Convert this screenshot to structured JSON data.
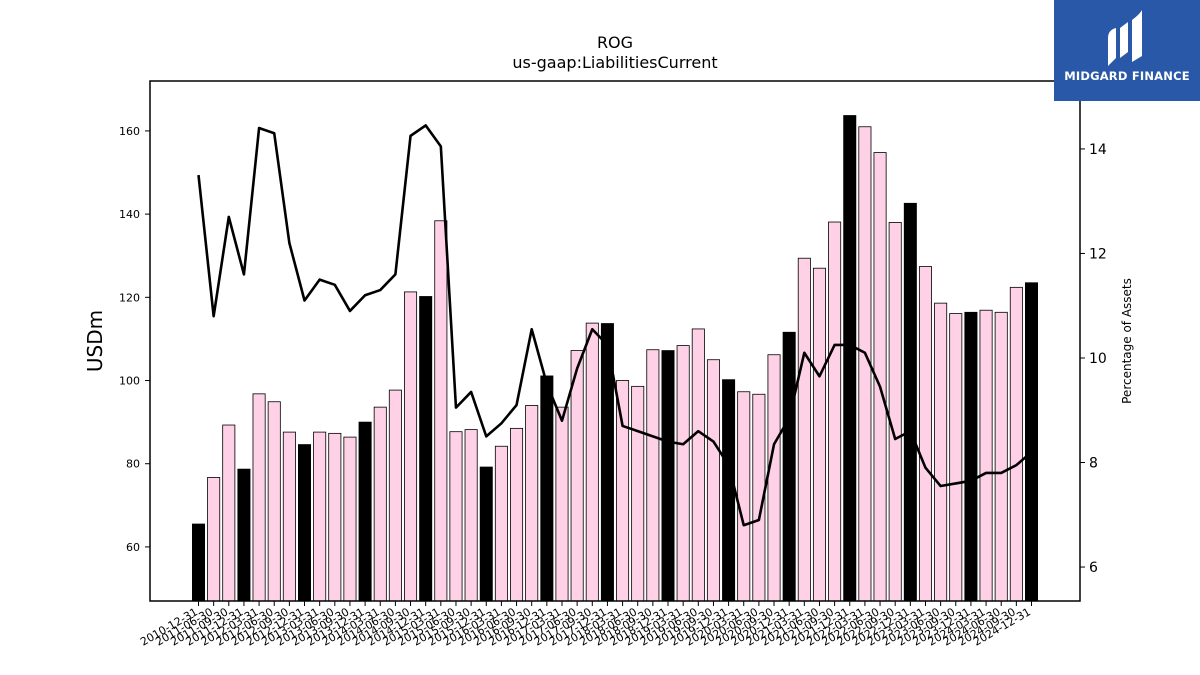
{
  "brand": {
    "name": "MIDGARD FINANCE",
    "logo_icon": "midgard-logo-icon",
    "background": "#2a58a8"
  },
  "chart_data": {
    "type": "bar",
    "title": "ROG",
    "subtitle": "us-gaap:LiabilitiesCurrent",
    "ylabel": "USDm",
    "ylabel_right": "Percentage of Assets",
    "ylim": [
      47,
      172
    ],
    "ylim_right": [
      5.35,
      15.3
    ],
    "yticks": [
      60,
      80,
      100,
      120,
      140,
      160
    ],
    "yticks_right": [
      6,
      8,
      10,
      12,
      14
    ],
    "grid": false,
    "colors": {
      "annual_bar": "#000000",
      "quarter_bar": "#ffd1e6",
      "bar_edge": "#000000",
      "line": "#000000"
    },
    "categories": [
      "2010-12-31",
      "2011-06-30",
      "2011-09-30",
      "2011-12-31",
      "2012-03-31",
      "2012-06-30",
      "2012-09-30",
      "2012-12-31",
      "2013-03-31",
      "2013-06-30",
      "2013-09-30",
      "2013-12-31",
      "2014-03-31",
      "2014-06-30",
      "2014-09-30",
      "2014-12-31",
      "2015-03-31",
      "2015-06-30",
      "2015-09-30",
      "2015-12-31",
      "2016-03-31",
      "2016-06-30",
      "2016-09-30",
      "2016-12-31",
      "2017-03-31",
      "2017-06-30",
      "2017-09-30",
      "2017-12-31",
      "2018-03-31",
      "2018-06-30",
      "2018-09-30",
      "2018-12-31",
      "2019-03-31",
      "2019-06-30",
      "2019-09-30",
      "2019-12-31",
      "2020-03-31",
      "2020-06-30",
      "2020-09-30",
      "2020-12-31",
      "2021-03-31",
      "2021-06-30",
      "2021-09-30",
      "2021-12-31",
      "2022-03-31",
      "2022-06-30",
      "2022-09-30",
      "2022-12-31",
      "2023-03-31",
      "2023-06-30",
      "2023-09-30",
      "2023-12-31",
      "2024-03-31",
      "2024-06-30",
      "2024-09-30",
      "2024-12-31"
    ],
    "series": [
      {
        "type": "bar",
        "values": [
          65.5,
          76.7,
          89.3,
          78.7,
          96.8,
          94.9,
          87.6,
          84.6,
          87.6,
          87.3,
          86.4,
          90.0,
          93.6,
          97.7,
          121.3,
          120.2,
          138.4,
          87.7,
          88.2,
          79.2,
          84.2,
          88.5,
          94.0,
          101.1,
          93.6,
          107.2,
          113.8,
          113.7,
          100.0,
          98.6,
          107.4,
          107.2,
          108.4,
          112.4,
          105.0,
          100.2,
          97.3,
          96.7,
          106.2,
          111.6,
          129.4,
          127.0,
          138.1,
          163.7,
          161.0,
          154.8,
          138.0,
          142.6,
          127.4,
          118.6,
          116.1,
          116.4,
          116.9,
          116.4,
          122.4,
          123.5
        ]
      },
      {
        "type": "line",
        "axis": "right",
        "values": [
          13.5,
          10.8,
          12.7,
          11.6,
          14.4,
          14.3,
          12.2,
          11.1,
          11.5,
          11.4,
          10.9,
          11.2,
          11.3,
          11.6,
          14.25,
          14.45,
          14.05,
          9.05,
          9.35,
          8.5,
          8.75,
          9.1,
          10.55,
          9.5,
          8.8,
          9.8,
          10.55,
          10.25,
          8.7,
          8.6,
          8.5,
          8.4,
          8.35,
          8.6,
          8.4,
          7.95,
          6.8,
          6.9,
          8.35,
          8.85,
          10.1,
          9.65,
          10.25,
          10.25,
          10.1,
          9.45,
          8.45,
          8.6,
          7.9,
          7.55,
          7.6,
          7.65,
          7.8,
          7.8,
          7.95,
          8.2
        ]
      }
    ]
  }
}
